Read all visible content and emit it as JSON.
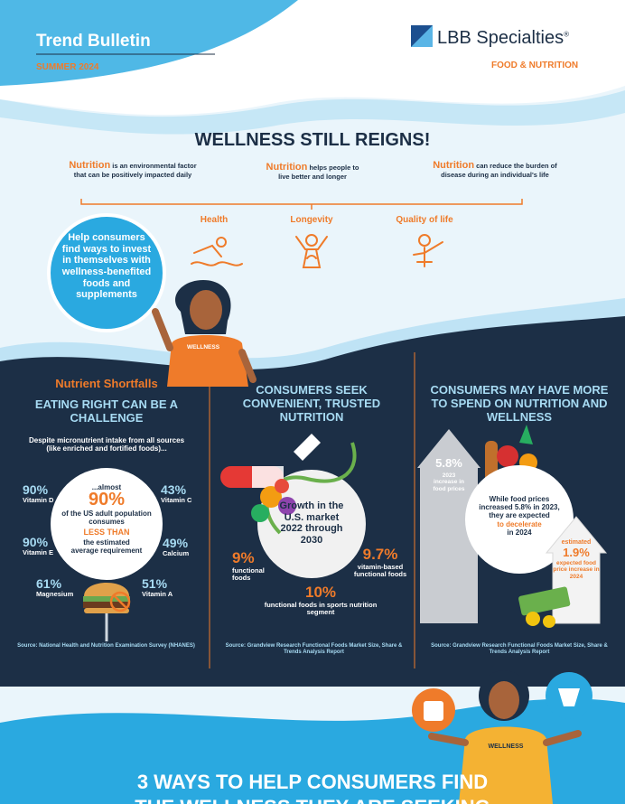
{
  "header": {
    "title": "Trend Bulletin",
    "season": "SUMMER 2024",
    "brand": "LBB Specialties",
    "brand_mark": "®",
    "division": "FOOD & NUTRITION"
  },
  "hero": {
    "title": "WELLNESS STILL REIGNS!",
    "facts": [
      {
        "keyword": "Nutrition",
        "text": "is an environmental factor that can be positively impacted daily"
      },
      {
        "keyword": "Nutrition",
        "text": "helps people to live better and longer"
      },
      {
        "keyword": "Nutrition",
        "text": "can reduce the burden of disease during an individual's life"
      }
    ],
    "benefits": [
      "Health",
      "Longevity",
      "Quality of life"
    ],
    "callout": "Help consumers find ways to invest in themselves with wellness-benefited foods and supplements",
    "shirt": "WELLNESS"
  },
  "columns": [
    {
      "kicker": "Nutrient Shortfalls",
      "title": "EATING RIGHT CAN BE A CHALLENGE",
      "intro": "Despite micronutrient intake from all sources (like enriched and fortified foods)...",
      "nutrients": [
        {
          "value": "90%",
          "name": "Vitamin D"
        },
        {
          "value": "43%",
          "name": "Vitamin C"
        },
        {
          "value": "90%",
          "name": "Vitamin E"
        },
        {
          "value": "49%",
          "name": "Calcium"
        },
        {
          "value": "61%",
          "name": "Magnesium"
        },
        {
          "value": "51%",
          "name": "Vitamin A"
        }
      ],
      "center": {
        "lead": "...almost",
        "value": "90%",
        "text": "of the US adult population consumes",
        "emphasis": "LESS THAN",
        "tail": "the estimated average requirement"
      },
      "source": "Source: National Health and Nutrition Examination Survey (NHANES)"
    },
    {
      "title": "CONSUMERS SEEK CONVENIENT, TRUSTED NUTRITION",
      "center": "Growth in the U.S. market 2022 through 2030",
      "stats": [
        {
          "value": "9%",
          "label": "functional foods"
        },
        {
          "value": "9.7%",
          "label": "vitamin-based functional foods"
        },
        {
          "value": "10%",
          "label": "functional foods in sports nutrition segment"
        }
      ],
      "source": "Source: Grandview Research Functional Foods Market Size, Share & Trends Analysis Report"
    },
    {
      "title": "CONSUMERS MAY HAVE MORE TO SPEND ON NUTRITION AND WELLNESS",
      "arrow": {
        "value": "5.8%",
        "label": "2023 increase in food prices"
      },
      "center": {
        "text": "While food prices increased 5.8% in 2023, they are expected",
        "emphasis": "to decelerate",
        "tail": "in 2024"
      },
      "estimate": {
        "lead": "estimated",
        "value": "1.9%",
        "label": "expected food price increase in 2024"
      },
      "source": "Source: Grandview Research Functional Foods Market Size, Share & Trends Analysis Report"
    }
  ],
  "footer": {
    "shirt": "WELLNESS",
    "title_lines": [
      "3 WAYS TO HELP CONSUMERS FIND",
      "THE WELLNESS THEY ARE SEEKING"
    ]
  }
}
